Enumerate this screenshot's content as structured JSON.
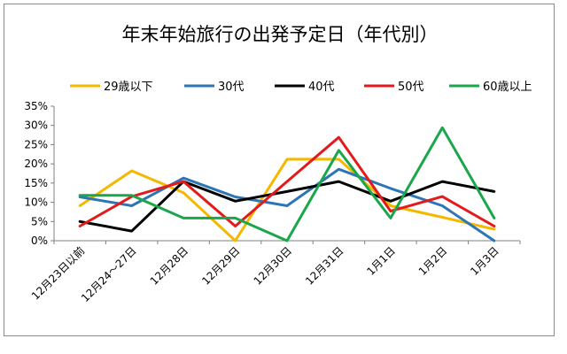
{
  "chart_data": {
    "type": "line",
    "title": "年末年始旅行の出発予定日（年代別）",
    "xlabel": "",
    "ylabel": "",
    "categories": [
      "12月23日以前",
      "12月24～27日",
      "12月28日",
      "12月29日",
      "12月30日",
      "12月31日",
      "1月1日",
      "1月2日",
      "1月3日"
    ],
    "ylim": [
      0,
      35
    ],
    "yticks": [
      0,
      5,
      10,
      15,
      20,
      25,
      30,
      35
    ],
    "ytick_labels": [
      "0%",
      "5%",
      "10%",
      "15%",
      "20%",
      "25%",
      "30%",
      "35%"
    ],
    "grid": false,
    "legend_position": "top",
    "series": [
      {
        "name": "29歳以下",
        "color": "#f5b800",
        "values": [
          9.1,
          18.2,
          12.5,
          0.0,
          21.2,
          21.2,
          9.1,
          6.1,
          3.0
        ]
      },
      {
        "name": "30代",
        "color": "#2e75b6",
        "values": [
          11.4,
          9.1,
          16.3,
          11.4,
          9.1,
          18.6,
          13.6,
          9.1,
          0.0
        ]
      },
      {
        "name": "40代",
        "color": "#000000",
        "values": [
          5.0,
          2.5,
          15.4,
          10.3,
          12.8,
          15.4,
          10.3,
          15.4,
          12.8
        ]
      },
      {
        "name": "50代",
        "color": "#e31a1c",
        "values": [
          3.8,
          11.5,
          15.4,
          3.8,
          15.4,
          26.9,
          7.7,
          11.5,
          3.8
        ]
      },
      {
        "name": "60歳以上",
        "color": "#1aa64b",
        "values": [
          11.8,
          11.8,
          5.9,
          5.9,
          0.0,
          23.5,
          5.9,
          29.4,
          5.9
        ]
      }
    ]
  }
}
